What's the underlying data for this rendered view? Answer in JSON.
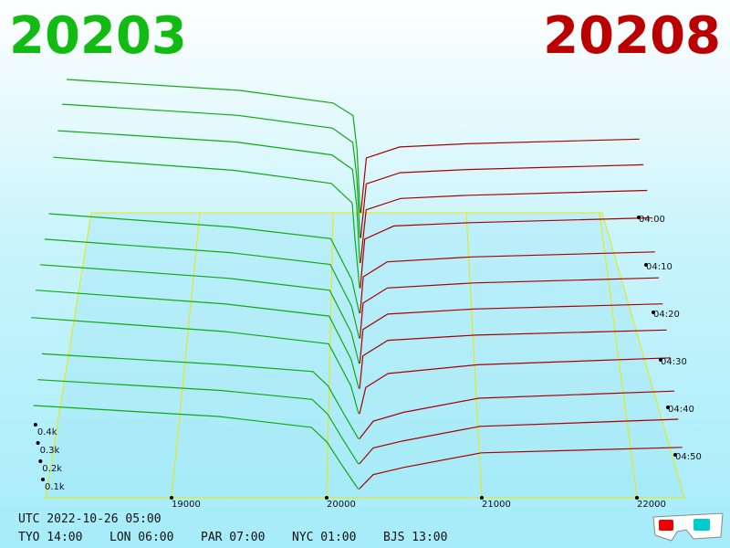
{
  "header": {
    "bid": "20203",
    "ask": "20208"
  },
  "price_axis": {
    "ticks": [
      19000,
      20000,
      21000,
      22000
    ]
  },
  "volume_axis": {
    "ticks": [
      {
        "value": 100,
        "label": "0.1k"
      },
      {
        "value": 200,
        "label": "0.2k"
      },
      {
        "value": 300,
        "label": "0.3k"
      },
      {
        "value": 400,
        "label": "0.4k"
      }
    ]
  },
  "time_axis": {
    "ticks": [
      "04:00",
      "04:10",
      "04:20",
      "04:30",
      "04:40",
      "04:50"
    ]
  },
  "clock": {
    "utc": "UTC 2022-10-26 05:00",
    "cities": [
      "TYO 14:00",
      "LON 06:00",
      "PAR 07:00",
      "NYC 01:00",
      "BJS 13:00"
    ]
  },
  "colors": {
    "bids": "#11aa11",
    "asks": "#aa0000"
  },
  "snapshots": [
    {
      "bids": [
        [
          20203,
          0
        ],
        [
          20180,
          400
        ],
        [
          20150,
          620
        ],
        [
          20000,
          700
        ],
        [
          19300,
          780
        ],
        [
          18000,
          850
        ]
      ],
      "asks": [
        [
          20208,
          0
        ],
        [
          20250,
          350
        ],
        [
          20500,
          420
        ],
        [
          21000,
          440
        ],
        [
          22300,
          470
        ]
      ]
    },
    {
      "bids": [
        [
          20203,
          0
        ],
        [
          20180,
          380
        ],
        [
          20150,
          600
        ],
        [
          20000,
          690
        ],
        [
          19300,
          770
        ],
        [
          18000,
          840
        ]
      ],
      "asks": [
        [
          20208,
          0
        ],
        [
          20250,
          340
        ],
        [
          20500,
          410
        ],
        [
          21000,
          430
        ],
        [
          22300,
          460
        ]
      ]
    },
    {
      "bids": [
        [
          20203,
          0
        ],
        [
          20180,
          360
        ],
        [
          20150,
          580
        ],
        [
          20000,
          670
        ],
        [
          19300,
          750
        ],
        [
          18000,
          820
        ]
      ],
      "asks": [
        [
          20208,
          0
        ],
        [
          20250,
          330
        ],
        [
          20500,
          400
        ],
        [
          21000,
          420
        ],
        [
          22300,
          450
        ]
      ]
    },
    {
      "bids": [
        [
          20203,
          0
        ],
        [
          20170,
          300
        ],
        [
          20150,
          520
        ],
        [
          20000,
          640
        ],
        [
          19300,
          720
        ],
        [
          18000,
          800
        ]
      ],
      "asks": [
        [
          20208,
          0
        ],
        [
          20240,
          300
        ],
        [
          20450,
          380
        ],
        [
          21000,
          400
        ],
        [
          22300,
          430
        ]
      ]
    },
    {
      "bids": [
        [
          20203,
          0
        ],
        [
          20150,
          200
        ],
        [
          20000,
          450
        ],
        [
          19300,
          520
        ],
        [
          18000,
          600
        ]
      ],
      "asks": [
        [
          20208,
          0
        ],
        [
          20230,
          220
        ],
        [
          20400,
          310
        ],
        [
          21000,
          340
        ],
        [
          22300,
          370
        ]
      ]
    },
    {
      "bids": [
        [
          20203,
          0
        ],
        [
          20150,
          190
        ],
        [
          20000,
          440
        ],
        [
          19300,
          510
        ],
        [
          18000,
          590
        ]
      ],
      "asks": [
        [
          20208,
          0
        ],
        [
          20230,
          210
        ],
        [
          20400,
          300
        ],
        [
          21000,
          330
        ],
        [
          22300,
          360
        ]
      ]
    },
    {
      "bids": [
        [
          20203,
          0
        ],
        [
          20150,
          180
        ],
        [
          20000,
          430
        ],
        [
          19300,
          500
        ],
        [
          18000,
          580
        ]
      ],
      "asks": [
        [
          20208,
          0
        ],
        [
          20230,
          200
        ],
        [
          20400,
          290
        ],
        [
          21000,
          320
        ],
        [
          22300,
          350
        ]
      ]
    },
    {
      "bids": [
        [
          20203,
          0
        ],
        [
          20150,
          170
        ],
        [
          20000,
          420
        ],
        [
          19300,
          490
        ],
        [
          18000,
          570
        ]
      ],
      "asks": [
        [
          20208,
          0
        ],
        [
          20230,
          190
        ],
        [
          20400,
          280
        ],
        [
          21000,
          310
        ],
        [
          22300,
          340
        ]
      ]
    },
    {
      "bids": [
        [
          20203,
          0
        ],
        [
          20150,
          160
        ],
        [
          20000,
          400
        ],
        [
          19300,
          470
        ],
        [
          18000,
          550
        ]
      ],
      "asks": [
        [
          20208,
          0
        ],
        [
          20250,
          150
        ],
        [
          20400,
          230
        ],
        [
          21000,
          280
        ],
        [
          22300,
          320
        ]
      ]
    },
    {
      "bids": [
        [
          20203,
          0
        ],
        [
          20100,
          150
        ],
        [
          20000,
          300
        ],
        [
          19900,
          380
        ],
        [
          19300,
          420
        ],
        [
          18100,
          480
        ]
      ],
      "asks": [
        [
          20208,
          0
        ],
        [
          20300,
          100
        ],
        [
          20500,
          150
        ],
        [
          21000,
          230
        ],
        [
          22300,
          270
        ]
      ]
    },
    {
      "bids": [
        [
          20203,
          0
        ],
        [
          20100,
          140
        ],
        [
          20000,
          280
        ],
        [
          19900,
          360
        ],
        [
          19300,
          410
        ],
        [
          18100,
          470
        ]
      ],
      "asks": [
        [
          20208,
          0
        ],
        [
          20300,
          90
        ],
        [
          20500,
          130
        ],
        [
          21000,
          210
        ],
        [
          22300,
          250
        ]
      ]
    },
    {
      "bids": [
        [
          20203,
          0
        ],
        [
          20100,
          130
        ],
        [
          20000,
          260
        ],
        [
          19900,
          340
        ],
        [
          19300,
          400
        ],
        [
          18100,
          460
        ]
      ],
      "asks": [
        [
          20208,
          0
        ],
        [
          20300,
          80
        ],
        [
          20500,
          120
        ],
        [
          21000,
          200
        ],
        [
          22300,
          230
        ]
      ]
    }
  ]
}
